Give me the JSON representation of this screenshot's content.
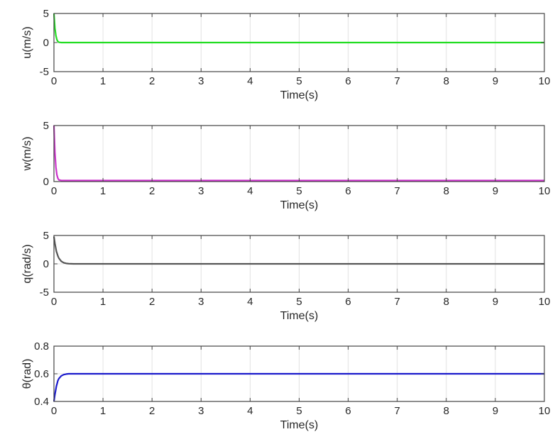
{
  "chart_data": [
    {
      "type": "line",
      "xlabel": "Time(s)",
      "ylabel": "u(m/s)",
      "xlim": [
        0,
        10
      ],
      "ylim": [
        -5,
        5
      ],
      "xticks": [
        0,
        1,
        2,
        3,
        4,
        5,
        6,
        7,
        8,
        9,
        10
      ],
      "xtick_labels": [
        "0",
        "1",
        "2",
        "3",
        "4",
        "5",
        "6",
        "7",
        "8",
        "9",
        "10"
      ],
      "yticks": [
        -5,
        0,
        5
      ],
      "ytick_labels": [
        "-5",
        "0",
        "5"
      ],
      "grid": true,
      "series": [
        {
          "color": "#22dd22",
          "x": [
            0,
            0.02,
            0.04,
            0.06,
            0.08,
            0.1,
            0.15,
            0.2,
            0.3,
            1,
            10
          ],
          "y": [
            5,
            2.5,
            1.2,
            0.5,
            0.2,
            0.05,
            0,
            0,
            0,
            0,
            0
          ]
        }
      ]
    },
    {
      "type": "line",
      "xlabel": "Time(s)",
      "ylabel": "w(m/s)",
      "xlim": [
        0,
        10
      ],
      "ylim": [
        0,
        5
      ],
      "xticks": [
        0,
        1,
        2,
        3,
        4,
        5,
        6,
        7,
        8,
        9,
        10
      ],
      "xtick_labels": [
        "0",
        "1",
        "2",
        "3",
        "4",
        "5",
        "6",
        "7",
        "8",
        "9",
        "10"
      ],
      "yticks": [
        0,
        5
      ],
      "ytick_labels": [
        "0",
        "5"
      ],
      "grid": true,
      "series": [
        {
          "color": "#cc33cc",
          "x": [
            0,
            0.02,
            0.04,
            0.06,
            0.08,
            0.1,
            0.15,
            0.2,
            0.3,
            1,
            10
          ],
          "y": [
            5,
            2.6,
            1.3,
            0.6,
            0.3,
            0.15,
            0.1,
            0.1,
            0.1,
            0.1,
            0.1
          ]
        }
      ]
    },
    {
      "type": "line",
      "xlabel": "Time(s)",
      "ylabel": "q(rad/s)",
      "xlim": [
        0,
        10
      ],
      "ylim": [
        -5,
        5
      ],
      "xticks": [
        0,
        1,
        2,
        3,
        4,
        5,
        6,
        7,
        8,
        9,
        10
      ],
      "xtick_labels": [
        "0",
        "1",
        "2",
        "3",
        "4",
        "5",
        "6",
        "7",
        "8",
        "9",
        "10"
      ],
      "yticks": [
        -5,
        0,
        5
      ],
      "ytick_labels": [
        "-5",
        "0",
        "5"
      ],
      "grid": true,
      "series": [
        {
          "color": "#555555",
          "x": [
            0,
            0.02,
            0.05,
            0.08,
            0.1,
            0.15,
            0.2,
            0.25,
            0.3,
            0.4,
            1,
            10
          ],
          "y": [
            4.8,
            3.6,
            2.2,
            1.4,
            1.0,
            0.45,
            0.2,
            0.08,
            0.03,
            0,
            0,
            0
          ]
        }
      ]
    },
    {
      "type": "line",
      "xlabel": "Time(s)",
      "ylabel": "θ(rad)",
      "xlim": [
        0,
        10
      ],
      "ylim": [
        0.4,
        0.8
      ],
      "xticks": [
        0,
        1,
        2,
        3,
        4,
        5,
        6,
        7,
        8,
        9,
        10
      ],
      "xtick_labels": [
        "0",
        "1",
        "2",
        "3",
        "4",
        "5",
        "6",
        "7",
        "8",
        "9",
        "10"
      ],
      "yticks": [
        0.4,
        0.6,
        0.8
      ],
      "ytick_labels": [
        "0.4",
        "0.6",
        "0.8"
      ],
      "grid": true,
      "series": [
        {
          "color": "#1a1acc",
          "x": [
            0,
            0.02,
            0.05,
            0.08,
            0.1,
            0.15,
            0.2,
            0.25,
            0.3,
            0.4,
            1,
            10
          ],
          "y": [
            0.4,
            0.45,
            0.51,
            0.55,
            0.565,
            0.585,
            0.594,
            0.598,
            0.6,
            0.6,
            0.6,
            0.6
          ]
        }
      ]
    }
  ]
}
